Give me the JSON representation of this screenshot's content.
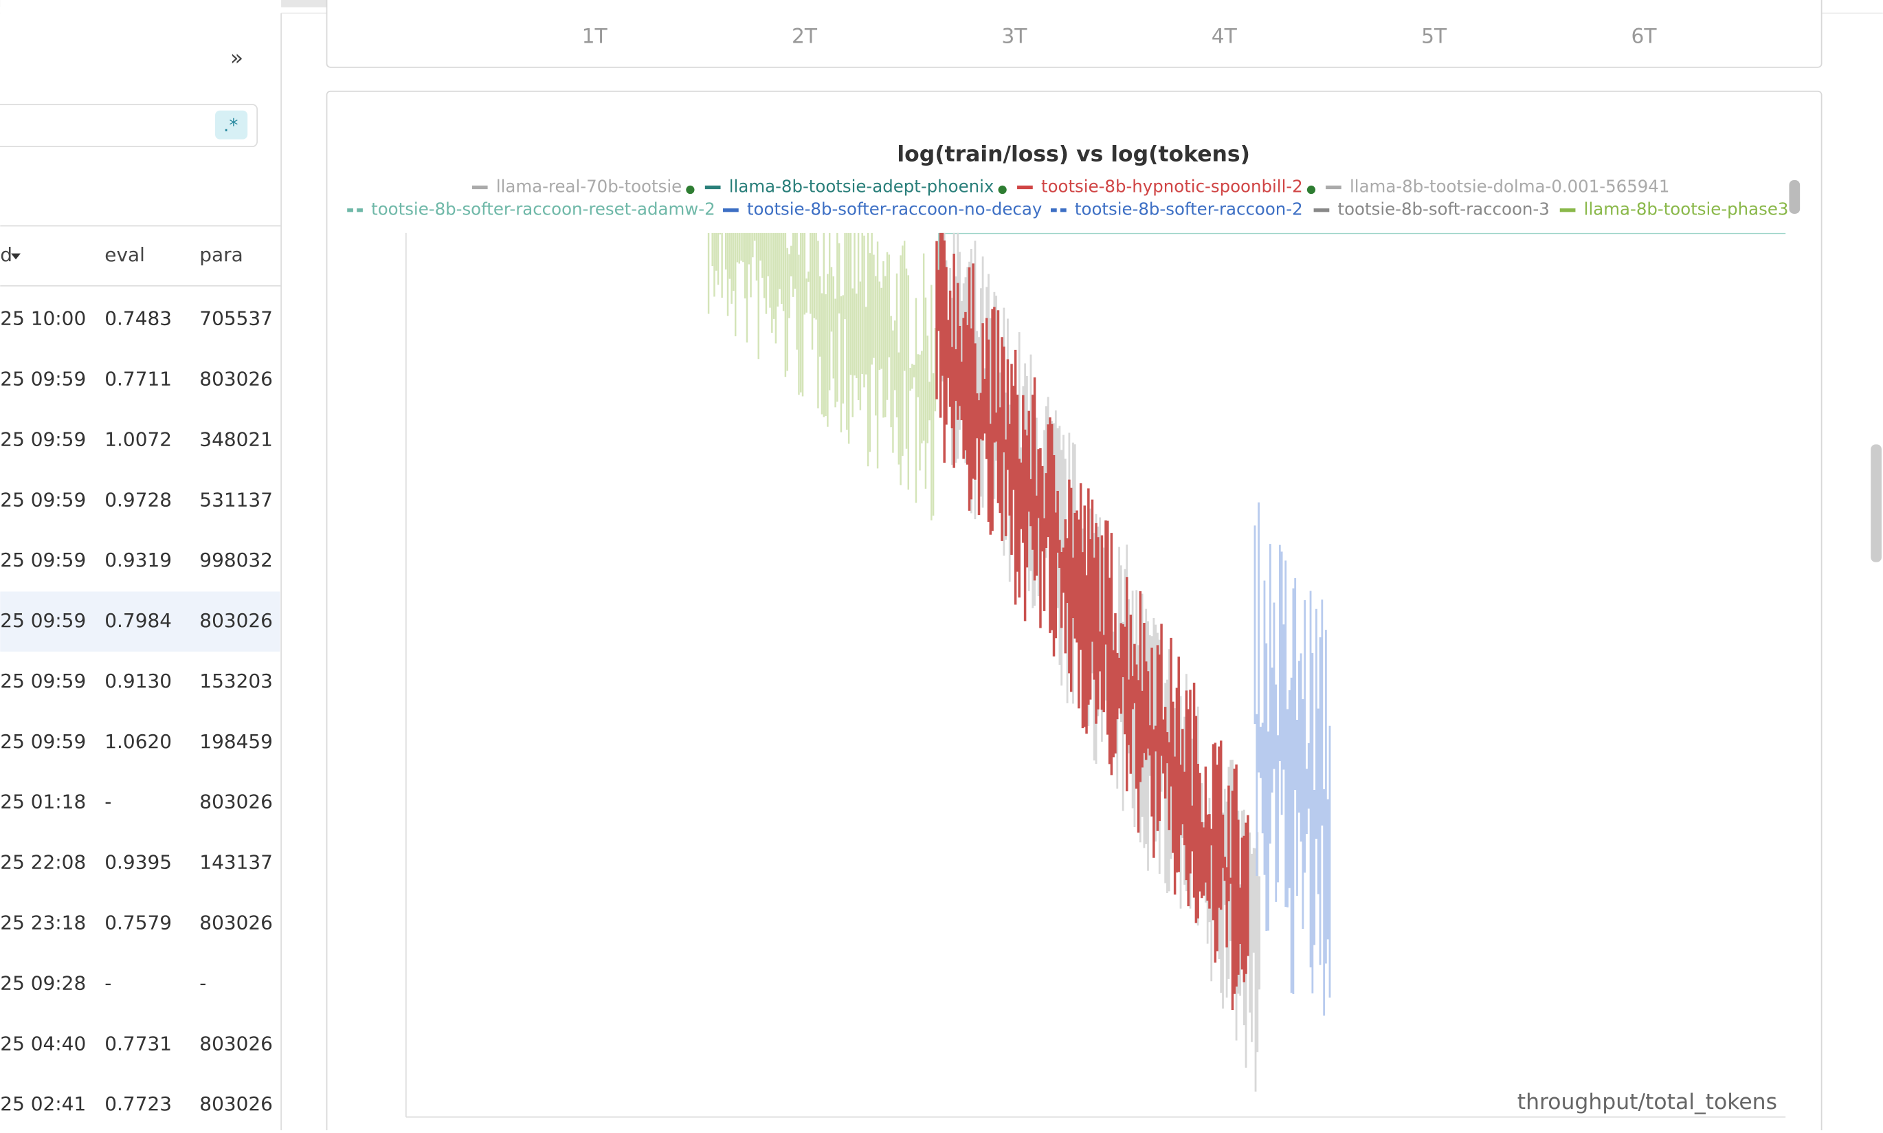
{
  "sidebar": {
    "columns": [
      "d",
      "eval",
      "para"
    ],
    "rows": [
      [
        "25 10:00",
        "0.74837",
        "705537"
      ],
      [
        "25 09:59",
        "0.77118",
        "803026"
      ],
      [
        "25 09:59",
        "1.00725",
        "348021"
      ],
      [
        "25 09:59",
        "0.97288",
        "531137"
      ],
      [
        "25 09:59",
        "0.93194",
        "998032"
      ],
      [
        "25 09:59",
        "0.79847",
        "803026"
      ],
      [
        "25 09:59",
        "0.91305",
        "153203"
      ],
      [
        "25 09:59",
        "1.06202",
        "198459"
      ],
      [
        "25 01:18",
        "-",
        "803026"
      ],
      [
        "25 22:08",
        "0.93951",
        "143137"
      ],
      [
        "25 23:18",
        "0.75791",
        "803026"
      ],
      [
        "25 09:28",
        "-",
        "-"
      ],
      [
        "25 04:40",
        "0.77318",
        "803026"
      ],
      [
        "25 02:41",
        "0.77238",
        "803026"
      ]
    ],
    "regex_badge": ".*",
    "collapse_icon": "»"
  },
  "top_panel": {
    "x_ticks": [
      "1T",
      "2T",
      "3T",
      "4T",
      "5T",
      "6T"
    ]
  },
  "chart": {
    "title": "log(train/loss) vs log(tokens)",
    "x_label": "throughput/total_tokens",
    "legend": [
      {
        "name": "llama-real-70b-tootsie",
        "color": "#aaaaaa",
        "dash": false,
        "dot": true
      },
      {
        "name": "llama-8b-tootsie-adept-phoenix",
        "color": "#2a7f7a",
        "dash": false,
        "dot": true
      },
      {
        "name": "tootsie-8b-hypnotic-spoonbill-2",
        "color": "#d04545",
        "dash": false,
        "dot": true
      },
      {
        "name": "llama-8b-tootsie-dolma-0.001-565941",
        "color": "#aaaaaa",
        "dash": false,
        "dot": false
      },
      {
        "name": "tootsie-8b-softer-raccoon-reset-adamw-2",
        "color": "#6fb8a8",
        "dash": true,
        "dot": false
      },
      {
        "name": "tootsie-8b-softer-raccoon-no-decay",
        "color": "#3d6fc4",
        "dash": false,
        "dot": false
      },
      {
        "name": "tootsie-8b-softer-raccoon-2",
        "color": "#3d6fc4",
        "dash": true,
        "dot": false
      },
      {
        "name": "tootsie-8b-soft-raccoon-3",
        "color": "#888888",
        "dash": false,
        "dot": false
      },
      {
        "name": "llama-8b-tootsie-phase3",
        "color": "#8ab84a",
        "dash": false,
        "dot": false
      }
    ]
  }
}
